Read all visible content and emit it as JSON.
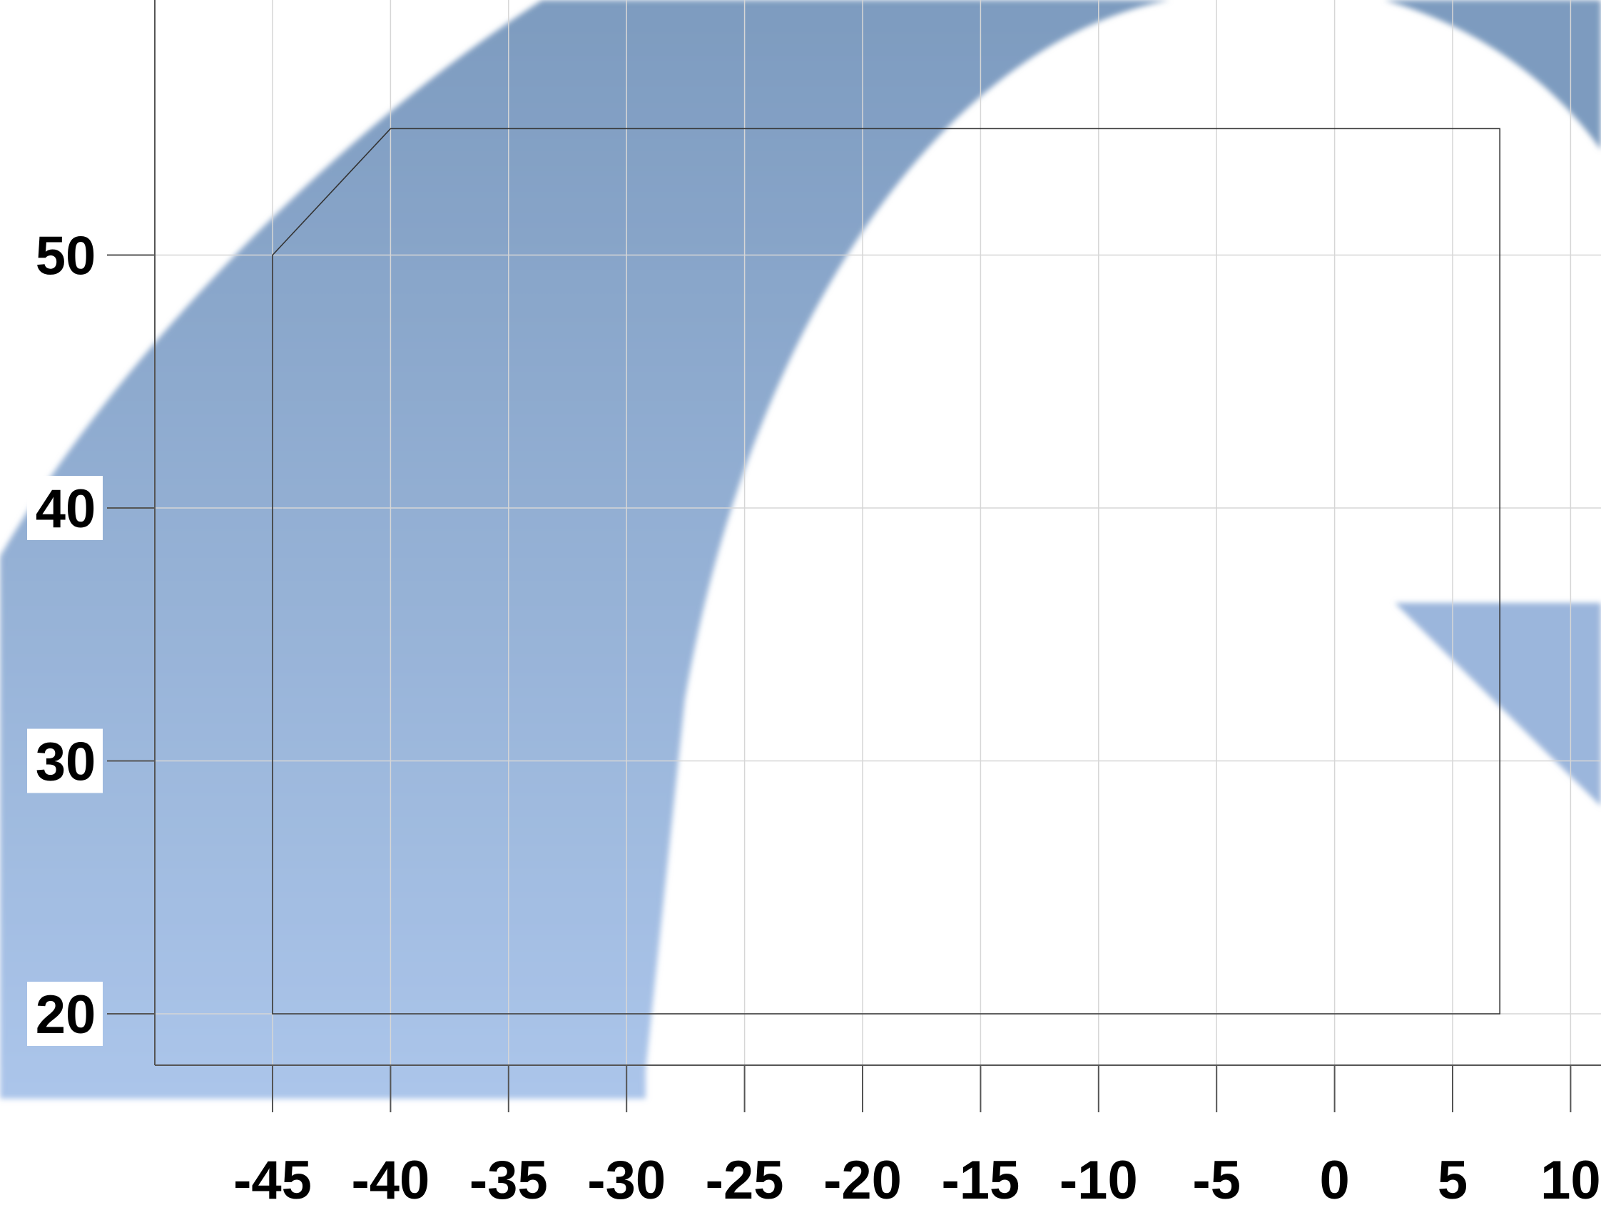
{
  "chart_data": {
    "type": "area",
    "x_ticks": [
      -45,
      -40,
      -35,
      -30,
      -25,
      -20,
      -15,
      -10,
      -5,
      0,
      5,
      10
    ],
    "x_tick_labels": [
      "-45",
      "-40",
      "-35",
      "-30",
      "-25",
      "-20",
      "-15",
      "-10",
      "-5",
      "0",
      "5",
      "10"
    ],
    "y_ticks": [
      20,
      30,
      40,
      50
    ],
    "y_tick_labels": [
      "20",
      "30",
      "40",
      "50"
    ],
    "xlim": [
      -50,
      10.5
    ],
    "ylim": [
      18,
      58
    ],
    "grid": true,
    "region": {
      "x": [
        -45,
        -40,
        7,
        7,
        -45
      ],
      "y": [
        50,
        55,
        55,
        20,
        20
      ]
    },
    "colors": {
      "band_top": "#7d9bbf",
      "band_bottom": "#abc5ea",
      "region_outline": "#333333",
      "grid": "#d6d6d6",
      "axis": "#555555"
    }
  }
}
